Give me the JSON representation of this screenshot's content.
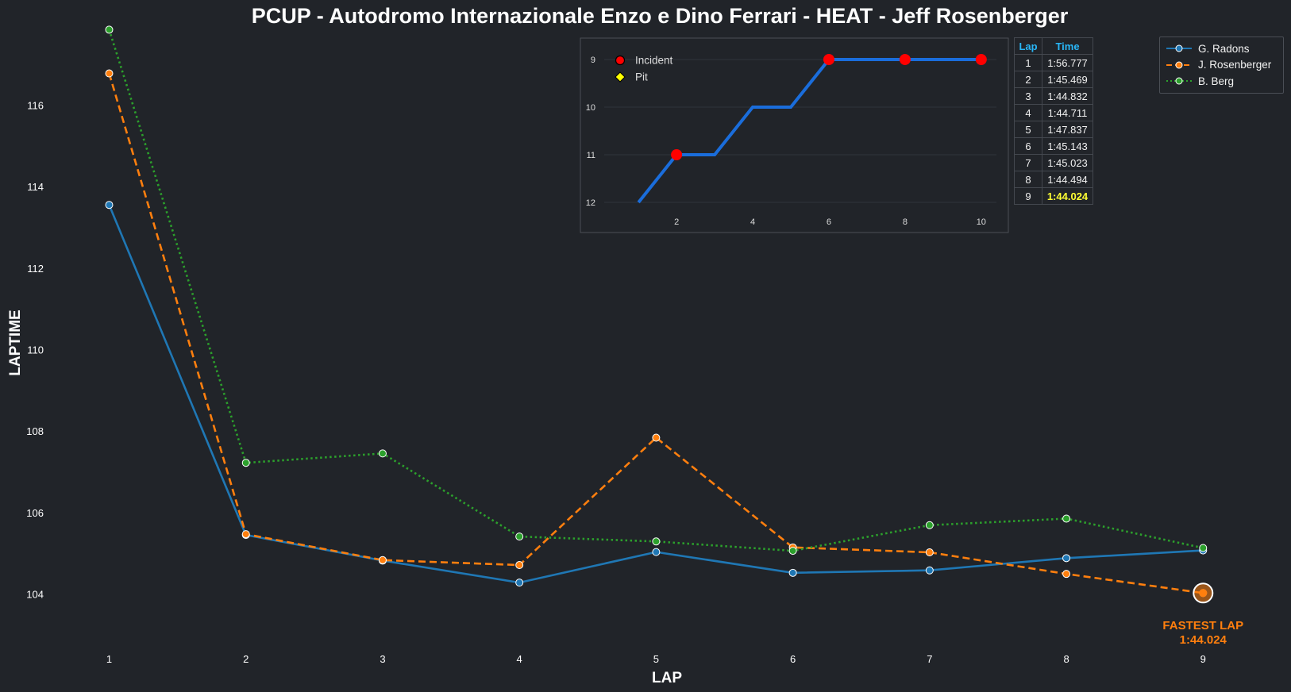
{
  "colors": {
    "background": "#212429",
    "radons": "#1f77b4",
    "rosenberger": "#ff7f0e",
    "berg": "#2ca02c",
    "position_line": "#1a6ddb",
    "incident": "#ff0000",
    "pit": "#ffff00",
    "fastest": "#ff7f0e",
    "table_header": "#29b6f6",
    "best_time": "#ffff33"
  },
  "chart_data": [
    {
      "type": "line",
      "title": "PCUP - Autodromo Internazionale Enzo e Dino Ferrari - HEAT - Jeff Rosenberger",
      "xlabel": "LAP",
      "ylabel": "LAPTIME",
      "x": [
        1,
        2,
        3,
        4,
        5,
        6,
        7,
        8,
        9
      ],
      "xlim": [
        0.55,
        9.55
      ],
      "ylim": [
        102.9,
        117.8
      ],
      "yticks": [
        104,
        106,
        108,
        110,
        112,
        114,
        116
      ],
      "grid": false,
      "legend_position": "top-right",
      "series": [
        {
          "name": "G. Radons",
          "style": "solid",
          "values": [
            113.55,
            105.45,
            104.82,
            104.28,
            105.03,
            104.52,
            104.58,
            104.88,
            105.07
          ]
        },
        {
          "name": "J. Rosenberger",
          "style": "dashed",
          "values": [
            116.777,
            105.469,
            104.832,
            104.711,
            107.837,
            105.143,
            105.023,
            104.494,
            104.024
          ]
        },
        {
          "name": "B. Berg",
          "style": "dotted",
          "values": [
            117.85,
            107.22,
            107.45,
            105.41,
            105.29,
            105.06,
            105.69,
            105.85,
            105.13
          ]
        }
      ],
      "annotation": {
        "label": "FASTEST LAP",
        "value": "1:44.024",
        "x": 9,
        "y": 104.024
      }
    },
    {
      "type": "line",
      "title": "",
      "x": [
        1,
        2,
        3,
        4,
        5,
        6,
        7,
        8,
        9,
        10
      ],
      "y": [
        12,
        11,
        11,
        10,
        10,
        9,
        9,
        9,
        9,
        9
      ],
      "xlim": [
        0.1,
        10.4
      ],
      "ylim": [
        12.1,
        8.9
      ],
      "xticks": [
        2,
        4,
        6,
        8,
        10
      ],
      "yticks": [
        9,
        10,
        11,
        12
      ],
      "y_inverted": true,
      "grid": true,
      "legend_position": "top-left",
      "legend": [
        "Incident",
        "Pit"
      ],
      "incidents": [
        2,
        6,
        8,
        10
      ],
      "pits": []
    }
  ],
  "lap_table": {
    "header_lap": "Lap",
    "header_time": "Time",
    "rows": [
      {
        "lap": "1",
        "time": "1:56.777"
      },
      {
        "lap": "2",
        "time": "1:45.469"
      },
      {
        "lap": "3",
        "time": "1:44.832"
      },
      {
        "lap": "4",
        "time": "1:44.711"
      },
      {
        "lap": "5",
        "time": "1:47.837"
      },
      {
        "lap": "6",
        "time": "1:45.143"
      },
      {
        "lap": "7",
        "time": "1:45.023"
      },
      {
        "lap": "8",
        "time": "1:44.494"
      },
      {
        "lap": "9",
        "time": "1:44.024"
      }
    ],
    "best_row": 8
  }
}
